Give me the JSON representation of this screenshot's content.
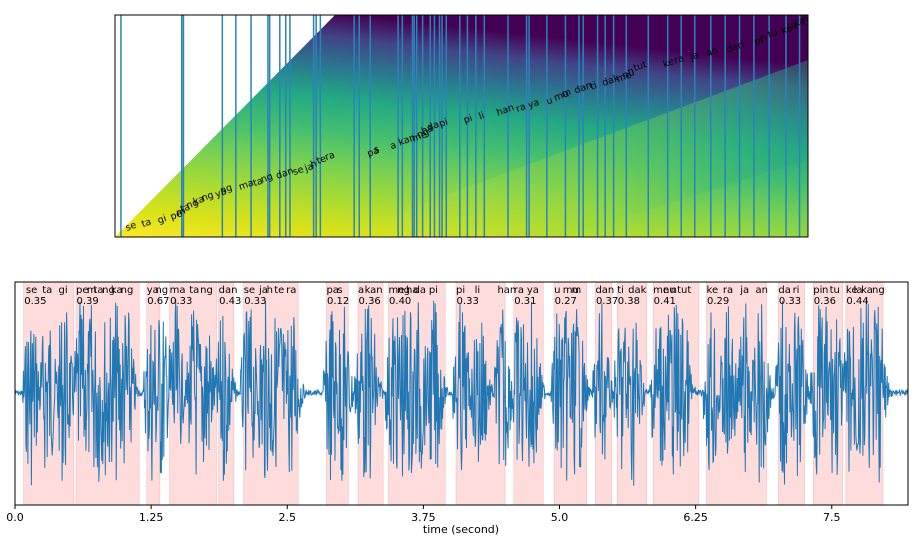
{
  "chart_data": [
    {
      "type": "heatmap",
      "description_free": true,
      "colormap": "viridis",
      "alignment_tokens": [
        {
          "text": "se",
          "t": 0.14
        },
        {
          "text": "ta",
          "t": 0.33
        },
        {
          "text": "gi",
          "t": 0.52
        },
        {
          "text": "pe",
          "t": 0.67
        },
        {
          "text": "m",
          "t": 0.74
        },
        {
          "text": "ta",
          "t": 0.79
        },
        {
          "text": "ng",
          "t": 0.86
        },
        {
          "text": "ka",
          "t": 0.94
        },
        {
          "text": "ng",
          "t": 1.04
        },
        {
          "text": "ya",
          "t": 1.2
        },
        {
          "text": "ng",
          "t": 1.26
        },
        {
          "text": "ma",
          "t": 1.48
        },
        {
          "text": "ta",
          "t": 1.65
        },
        {
          "text": "ng",
          "t": 1.74
        },
        {
          "text": "dan",
          "t": 1.92
        },
        {
          "text": "se",
          "t": 2.12
        },
        {
          "text": "ja",
          "t": 2.26
        },
        {
          "text": "h",
          "t": 2.33
        },
        {
          "text": "te",
          "t": 2.4
        },
        {
          "text": "ra",
          "t": 2.5
        },
        {
          "text": "pa",
          "t": 3.0
        },
        {
          "text": "s",
          "t": 3.08
        },
        {
          "text": "a",
          "t": 3.27
        },
        {
          "text": "kan",
          "t": 3.37
        },
        {
          "text": "me",
          "t": 3.53
        },
        {
          "text": "ng",
          "t": 3.59
        },
        {
          "text": "ha",
          "t": 3.64
        },
        {
          "text": "da",
          "t": 3.71
        },
        {
          "text": "pi",
          "t": 3.85
        },
        {
          "text": "pi",
          "t": 4.14
        },
        {
          "text": "li",
          "t": 4.32
        },
        {
          "text": "han",
          "t": 4.53
        },
        {
          "text": "ra",
          "t": 4.76
        },
        {
          "text": "ya",
          "t": 4.9
        },
        {
          "text": "u",
          "t": 5.12
        },
        {
          "text": "mu",
          "t": 5.21
        },
        {
          "text": "m",
          "t": 5.3
        },
        {
          "text": "dan",
          "t": 5.45
        },
        {
          "text": "ti",
          "t": 5.64
        },
        {
          "text": "dak",
          "t": 5.78
        },
        {
          "text": "me",
          "t": 5.95
        },
        {
          "text": "nu",
          "t": 6.02
        },
        {
          "text": "n",
          "t": 6.08
        },
        {
          "text": "tut",
          "t": 6.15
        },
        {
          "text": "ke",
          "t": 6.5
        },
        {
          "text": "ra",
          "t": 6.63
        },
        {
          "text": "ja",
          "t": 6.82
        },
        {
          "text": "an",
          "t": 7.01
        },
        {
          "text": "da",
          "t": 7.25
        },
        {
          "text": "ri",
          "t": 7.38
        },
        {
          "text": "pi",
          "t": 7.58
        },
        {
          "text": "n",
          "t": 7.65
        },
        {
          "text": "tu",
          "t": 7.74
        },
        {
          "text": "ke",
          "t": 7.9
        },
        {
          "text": "la",
          "t": 7.98
        },
        {
          "text": "ka",
          "t": 8.05
        },
        {
          "text": "ng",
          "t": 8.14
        }
      ],
      "boundaries": [
        0.07,
        0.79,
        0.81,
        1.27,
        1.43,
        1.61,
        1.81,
        1.83,
        1.95,
        2.02,
        2.07,
        2.35,
        2.38,
        2.43,
        2.83,
        2.89,
        3.02,
        3.35,
        3.4,
        3.52,
        3.54,
        3.57,
        3.64,
        3.73,
        3.78,
        3.84,
        3.87,
        3.92,
        4.08,
        4.17,
        4.27,
        4.37,
        4.65,
        4.87,
        4.9,
        5.11,
        5.33,
        5.49,
        5.54,
        5.71,
        5.8,
        5.9,
        6.05,
        6.31,
        6.54,
        6.7,
        6.86,
        7.05,
        7.22,
        7.39,
        7.56,
        7.74,
        7.94,
        8.1
      ]
    },
    {
      "type": "area",
      "xlabel": "time (second)",
      "xlim": [
        0.0,
        8.2
      ],
      "xticks": [
        "0.0",
        "1.25",
        "2.5",
        "3.75",
        "5.0",
        "6.25",
        "7.5"
      ],
      "xtick_values": [
        0.0,
        1.25,
        2.5,
        3.75,
        5.0,
        6.25,
        7.5
      ],
      "line_color": "#1f77b4",
      "segment_color": "#ffdcdc",
      "segments": [
        {
          "words": [
            "se",
            "ta",
            "gi"
          ],
          "score": "0.35",
          "start": 0.08,
          "end": 0.54,
          "word_t": [
            0.1,
            0.25,
            0.4
          ]
        },
        {
          "words": [
            "pe",
            "m",
            "ta",
            "ng",
            "ka",
            "ng"
          ],
          "score": "0.39",
          "start": 0.56,
          "end": 1.14,
          "word_t": [
            0.56,
            0.66,
            0.72,
            0.8,
            0.88,
            0.97
          ]
        },
        {
          "words": [
            "ya",
            "ng"
          ],
          "score": "0.67",
          "start": 1.21,
          "end": 1.33,
          "word_t": [
            1.21,
            1.29
          ]
        },
        {
          "words": [
            "ma",
            "ta",
            "ng"
          ],
          "score": "0.33",
          "start": 1.42,
          "end": 1.85,
          "word_t": [
            1.42,
            1.6,
            1.7
          ]
        },
        {
          "words": [
            "dan"
          ],
          "score": "0.43",
          "start": 1.87,
          "end": 2.01,
          "word_t": [
            1.87
          ]
        },
        {
          "words": [
            "se",
            "ja",
            "h",
            "te",
            "ra"
          ],
          "score": "0.33",
          "start": 2.1,
          "end": 2.6,
          "word_t": [
            2.1,
            2.24,
            2.31,
            2.38,
            2.49
          ]
        },
        {
          "words": [
            "pa",
            "s"
          ],
          "score": "0.12",
          "start": 2.86,
          "end": 3.06,
          "word_t": [
            2.86,
            2.96
          ]
        },
        {
          "words": [
            "a",
            "kan"
          ],
          "score": "0.36",
          "start": 3.15,
          "end": 3.38,
          "word_t": [
            3.15,
            3.21
          ]
        },
        {
          "words": [
            "me",
            "ng",
            "ha",
            "da",
            "pi"
          ],
          "score": "0.40",
          "start": 3.43,
          "end": 3.95,
          "word_t": [
            3.43,
            3.51,
            3.59,
            3.66,
            3.8
          ]
        },
        {
          "words": [
            "pi",
            "li",
            "han"
          ],
          "score": "0.33",
          "start": 4.05,
          "end": 4.5,
          "word_t": [
            4.05,
            4.22,
            4.43
          ]
        },
        {
          "words": [
            "ra",
            "ya"
          ],
          "score": "0.31",
          "start": 4.58,
          "end": 4.85,
          "word_t": [
            4.58,
            4.7
          ]
        },
        {
          "words": [
            "u",
            "mu",
            "m"
          ],
          "score": "0.27",
          "start": 4.95,
          "end": 5.25,
          "word_t": [
            4.95,
            5.03,
            5.11
          ]
        },
        {
          "words": [
            "dan"
          ],
          "score": "0.37",
          "start": 5.33,
          "end": 5.48,
          "word_t": [
            5.33
          ]
        },
        {
          "words": [
            "ti",
            "dak"
          ],
          "score": "0.38",
          "start": 5.53,
          "end": 5.8,
          "word_t": [
            5.53,
            5.63
          ]
        },
        {
          "words": [
            "me",
            "nu",
            "n",
            "tut"
          ],
          "score": "0.41",
          "start": 5.86,
          "end": 6.28,
          "word_t": [
            5.86,
            5.95,
            6.02,
            6.08
          ]
        },
        {
          "words": [
            "ke",
            "ra",
            "ja",
            "an"
          ],
          "score": "0.29",
          "start": 6.35,
          "end": 6.9,
          "word_t": [
            6.35,
            6.5,
            6.66,
            6.8
          ]
        },
        {
          "words": [
            "da",
            "ri"
          ],
          "score": "0.33",
          "start": 7.01,
          "end": 7.25,
          "word_t": [
            7.01,
            7.14
          ]
        },
        {
          "words": [
            "pi",
            "n",
            "tu"
          ],
          "score": "0.36",
          "start": 7.33,
          "end": 7.6,
          "word_t": [
            7.33,
            7.41,
            7.48
          ]
        },
        {
          "words": [
            "ke",
            "la",
            "ka",
            "ng"
          ],
          "score": "0.44",
          "start": 7.63,
          "end": 7.97,
          "word_t": [
            7.63,
            7.7,
            7.77,
            7.87
          ]
        }
      ]
    }
  ]
}
